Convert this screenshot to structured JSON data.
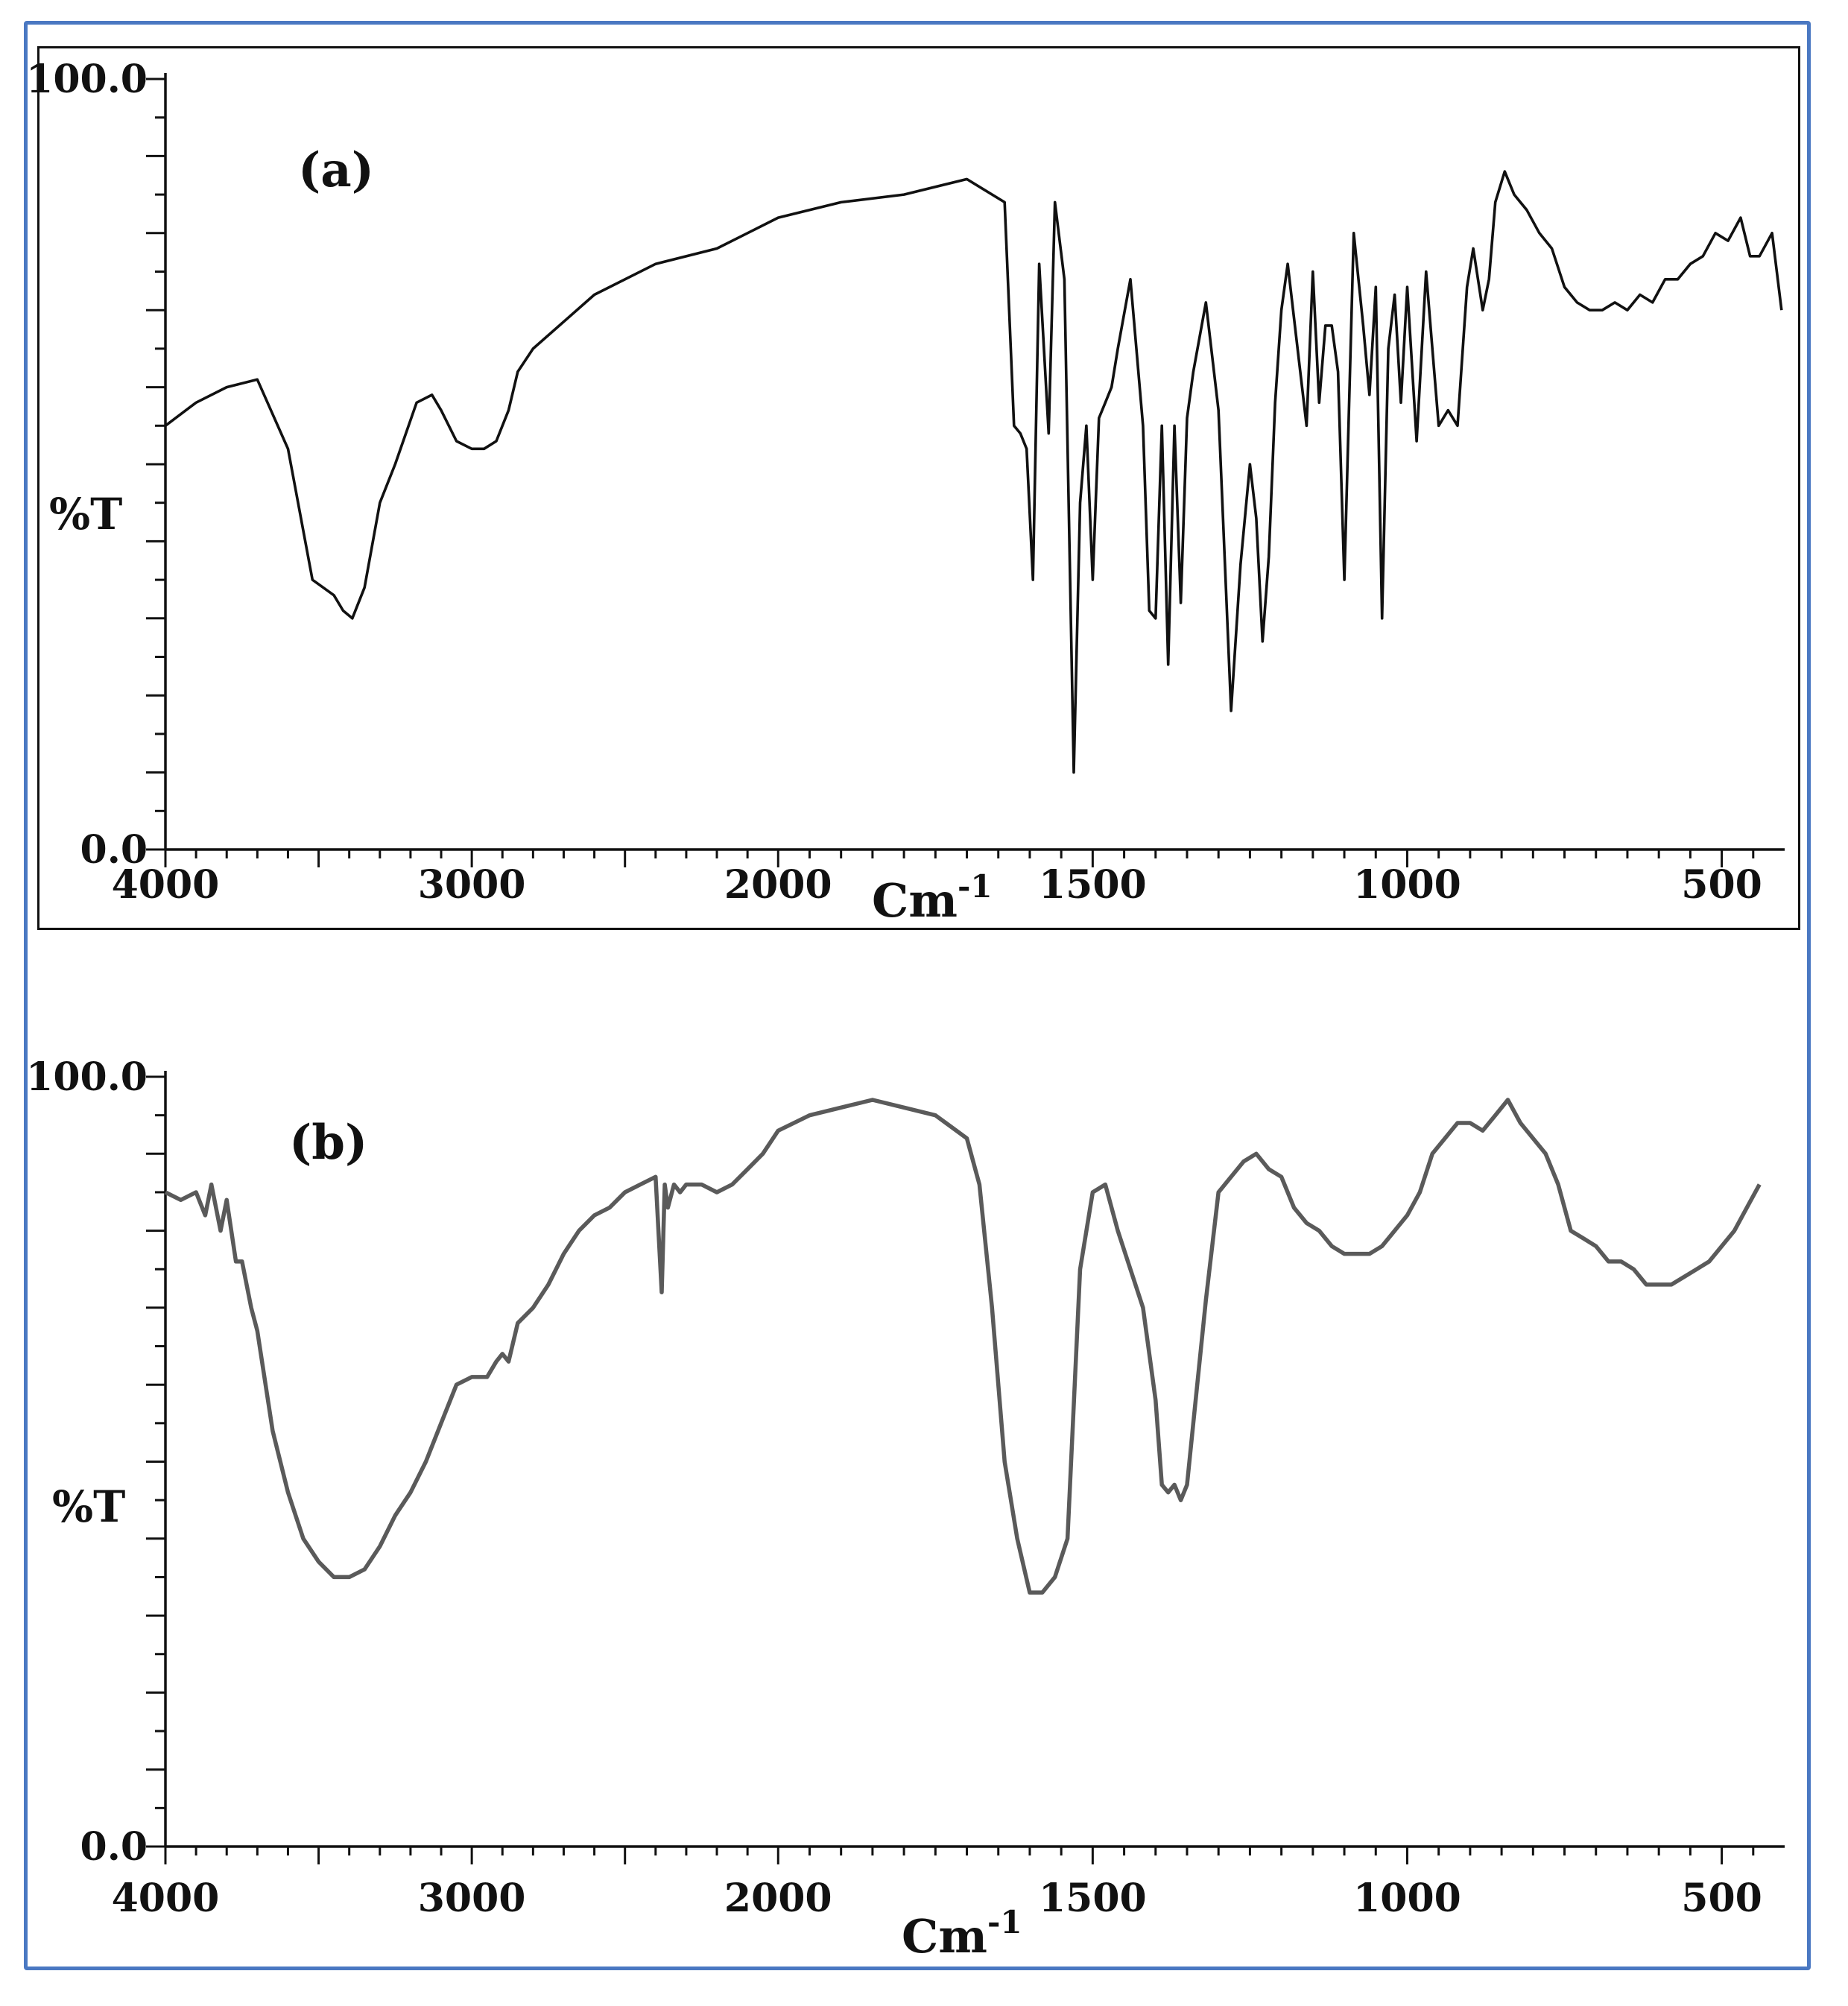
{
  "chart_data": [
    {
      "type": "line",
      "panel_label": "(a)",
      "ylabel": "%T",
      "xlabel": "Cm",
      "xlabel_exp": "-1",
      "ylim": [
        0,
        100
      ],
      "xlim": [
        4000,
        400
      ],
      "x_tick_labels": [
        "4000",
        "3000",
        "2000",
        "1500",
        "1000",
        "500"
      ],
      "y_tick_labels": [
        "100.0",
        "0.0"
      ],
      "series": [
        {
          "x": [
            4000,
            3900,
            3800,
            3700,
            3600,
            3520,
            3450,
            3420,
            3390,
            3350,
            3300,
            3250,
            3180,
            3130,
            3100,
            3050,
            3000,
            2960,
            2920,
            2880,
            2850,
            2800,
            2600,
            2400,
            2200,
            2100,
            2000,
            1900,
            1800,
            1700,
            1640,
            1625,
            1615,
            1605,
            1595,
            1585,
            1570,
            1560,
            1545,
            1530,
            1520,
            1510,
            1500,
            1490,
            1480,
            1470,
            1460,
            1440,
            1420,
            1410,
            1400,
            1390,
            1380,
            1370,
            1360,
            1350,
            1340,
            1320,
            1300,
            1280,
            1265,
            1250,
            1240,
            1230,
            1220,
            1210,
            1200,
            1190,
            1180,
            1160,
            1150,
            1140,
            1130,
            1120,
            1110,
            1100,
            1085,
            1070,
            1060,
            1050,
            1040,
            1030,
            1020,
            1010,
            1000,
            985,
            970,
            960,
            950,
            935,
            920,
            905,
            895,
            880,
            870,
            860,
            845,
            830,
            810,
            790,
            770,
            750,
            730,
            710,
            690,
            670,
            650,
            630,
            610,
            590,
            570,
            550,
            530,
            510,
            490,
            470,
            455,
            440,
            420,
            405
          ],
          "y": [
            55,
            58,
            60,
            61,
            52,
            35,
            33,
            31,
            30,
            34,
            45,
            50,
            58,
            59,
            57,
            53,
            52,
            52,
            53,
            57,
            62,
            65,
            72,
            76,
            78,
            80,
            82,
            84,
            85,
            87,
            84,
            55,
            54,
            52,
            35,
            76,
            54,
            84,
            74,
            10,
            45,
            55,
            35,
            56,
            58,
            60,
            65,
            74,
            55,
            31,
            30,
            55,
            24,
            55,
            32,
            56,
            62,
            71,
            57,
            18,
            37,
            50,
            43,
            27,
            38,
            58,
            70,
            76,
            69,
            55,
            75,
            58,
            68,
            68,
            62,
            35,
            80,
            68,
            59,
            73,
            30,
            65,
            72,
            58,
            73,
            53,
            75,
            65,
            55,
            57,
            55,
            73,
            78,
            70,
            74,
            84,
            88,
            85,
            83,
            80,
            78,
            73,
            71,
            70,
            70,
            71,
            70,
            72,
            71,
            74,
            74,
            76,
            77,
            80,
            79,
            82,
            77,
            77,
            80,
            70
          ]
        }
      ]
    },
    {
      "type": "line",
      "panel_label": "(b)",
      "ylabel": "%T",
      "xlabel": "Cm",
      "xlabel_exp": "-1",
      "ylim": [
        0,
        100
      ],
      "xlim": [
        4000,
        400
      ],
      "x_tick_labels": [
        "4000",
        "3000",
        "2000",
        "1500",
        "1000",
        "500"
      ],
      "y_tick_labels": [
        "100.0",
        "0.0"
      ],
      "series": [
        {
          "x": [
            4000,
            3950,
            3900,
            3870,
            3850,
            3820,
            3800,
            3770,
            3750,
            3720,
            3700,
            3650,
            3600,
            3550,
            3500,
            3450,
            3400,
            3350,
            3300,
            3250,
            3200,
            3150,
            3100,
            3050,
            3000,
            2950,
            2920,
            2900,
            2880,
            2850,
            2800,
            2750,
            2700,
            2650,
            2600,
            2550,
            2500,
            2450,
            2400,
            2380,
            2370,
            2360,
            2340,
            2320,
            2300,
            2250,
            2200,
            2150,
            2100,
            2050,
            2000,
            1950,
            1900,
            1850,
            1800,
            1750,
            1700,
            1680,
            1660,
            1640,
            1620,
            1600,
            1580,
            1560,
            1540,
            1520,
            1500,
            1480,
            1460,
            1440,
            1420,
            1400,
            1390,
            1380,
            1370,
            1360,
            1350,
            1340,
            1320,
            1300,
            1280,
            1260,
            1240,
            1220,
            1200,
            1180,
            1160,
            1140,
            1120,
            1100,
            1080,
            1060,
            1040,
            1020,
            1000,
            980,
            960,
            940,
            920,
            900,
            880,
            860,
            840,
            820,
            800,
            780,
            760,
            740,
            720,
            700,
            680,
            660,
            640,
            620,
            600,
            580,
            560,
            540,
            520,
            500,
            480,
            460,
            440
          ],
          "y": [
            85,
            84,
            85,
            82,
            86,
            80,
            84,
            76,
            76,
            70,
            67,
            54,
            46,
            40,
            37,
            35,
            35,
            36,
            39,
            43,
            46,
            50,
            55,
            60,
            61,
            61,
            63,
            64,
            63,
            68,
            70,
            73,
            77,
            80,
            82,
            83,
            85,
            86,
            87,
            72,
            86,
            83,
            86,
            85,
            86,
            86,
            85,
            86,
            88,
            90,
            93,
            95,
            96,
            97,
            96,
            95,
            92,
            86,
            70,
            50,
            40,
            33,
            33,
            35,
            40,
            75,
            85,
            86,
            80,
            75,
            70,
            58,
            47,
            46,
            47,
            45,
            47,
            55,
            71,
            85,
            87,
            89,
            90,
            88,
            87,
            83,
            81,
            80,
            78,
            77,
            77,
            77,
            78,
            80,
            82,
            85,
            90,
            92,
            94,
            94,
            93,
            95,
            97,
            94,
            92,
            90,
            86,
            80,
            79,
            78,
            76,
            76,
            75,
            73,
            73,
            73,
            74,
            75,
            76,
            78,
            80,
            83,
            86
          ]
        }
      ]
    }
  ]
}
